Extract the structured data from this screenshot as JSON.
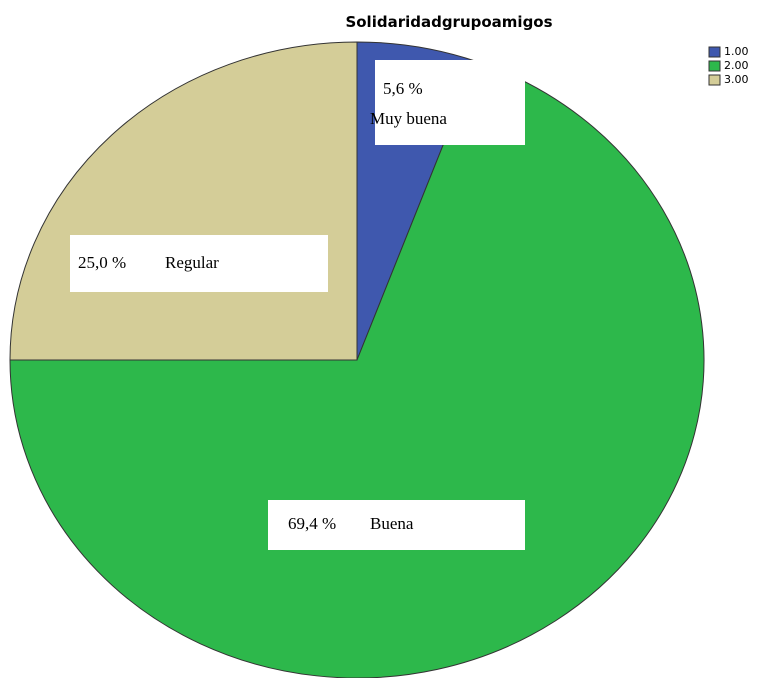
{
  "chart_data": {
    "type": "pie",
    "title": "Solidaridadgrupoamigos",
    "categories": [
      "1.00",
      "2.00",
      "3.00"
    ],
    "values": [
      5.6,
      69.4,
      25.0
    ],
    "value_labels": [
      "5,6 %",
      "69,4 %",
      "25,0 %"
    ],
    "label_names": [
      "Muy buena",
      "Buena",
      "Regular"
    ],
    "colors": [
      "#3f58ae",
      "#2db84b",
      "#d4cd98"
    ],
    "legend": "upper right"
  }
}
